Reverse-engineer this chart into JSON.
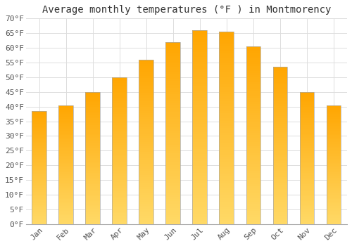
{
  "title": "Average monthly temperatures (°F ) in Montmorency",
  "months": [
    "Jan",
    "Feb",
    "Mar",
    "Apr",
    "May",
    "Jun",
    "Jul",
    "Aug",
    "Sep",
    "Oct",
    "Nov",
    "Dec"
  ],
  "values": [
    38.5,
    40.5,
    45.0,
    50.0,
    56.0,
    62.0,
    66.0,
    65.5,
    60.5,
    53.5,
    45.0,
    40.5
  ],
  "bar_color_bottom": "#FFD966",
  "bar_color_top": "#FFA500",
  "bar_edge_color": "#AAAAAA",
  "ylim": [
    0,
    70
  ],
  "yticks": [
    0,
    5,
    10,
    15,
    20,
    25,
    30,
    35,
    40,
    45,
    50,
    55,
    60,
    65,
    70
  ],
  "ytick_labels": [
    "0°F",
    "5°F",
    "10°F",
    "15°F",
    "20°F",
    "25°F",
    "30°F",
    "35°F",
    "40°F",
    "45°F",
    "50°F",
    "55°F",
    "60°F",
    "65°F",
    "70°F"
  ],
  "background_color": "#FFFFFF",
  "grid_color": "#DDDDDD",
  "title_fontsize": 10,
  "tick_fontsize": 8,
  "bar_width": 0.55
}
